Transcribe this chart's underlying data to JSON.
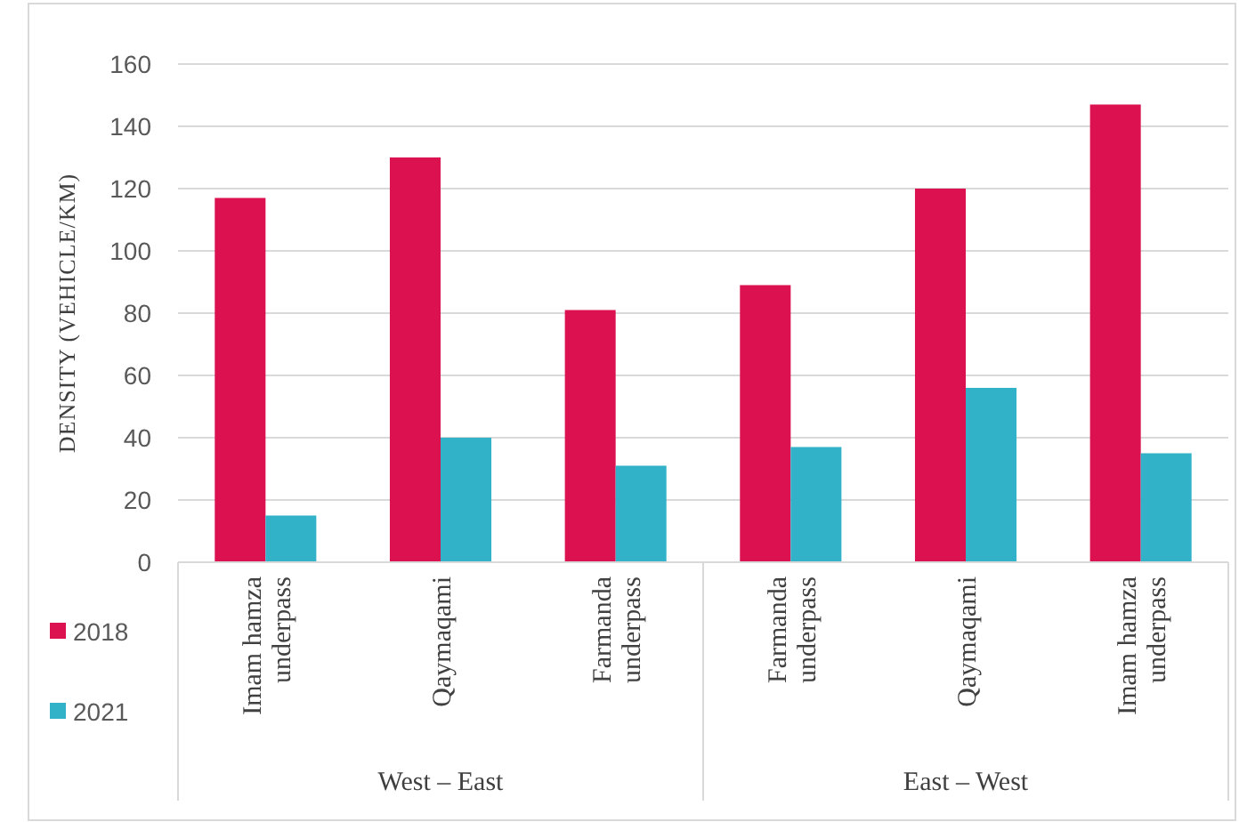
{
  "chart_data": {
    "type": "bar",
    "ylabel": "DENSITY (VEHICLE/KM)",
    "categories": [
      "Imam hamza underpass",
      "Qaymaqami",
      "Farmanda underpass",
      "Farmanda underpass",
      "Qaymaqami",
      "Imam hamza underpass"
    ],
    "series": [
      {
        "name": "2018",
        "color": "#dc1250",
        "values": [
          117,
          130,
          81,
          89,
          120,
          147
        ]
      },
      {
        "name": "2021",
        "color": "#31b2c8",
        "values": [
          15,
          40,
          31,
          37,
          56,
          35
        ]
      }
    ],
    "annotations": [
      "West – East",
      "East – West"
    ],
    "ylim": [
      0,
      160
    ],
    "yticks": [
      0,
      20,
      40,
      60,
      80,
      100,
      120,
      140,
      160
    ],
    "grid": "y",
    "legend": "left"
  }
}
